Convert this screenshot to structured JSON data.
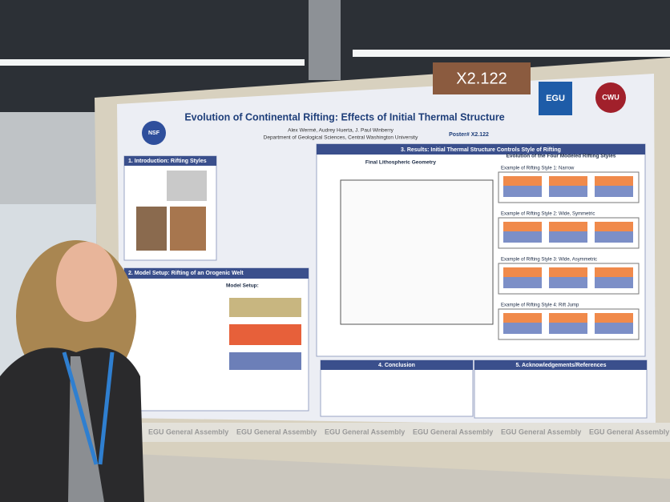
{
  "booth_sign": "X2.122",
  "poster": {
    "title": "Evolution of Continental Rifting: Effects of Initial Thermal Structure",
    "authors": "Alex Wermé, Audrey Huerta, J. Paul Winberry",
    "affiliation": "Department of Geological Sciences, Central Washington University",
    "poster_number": "Poster# X2.122",
    "logos": [
      "NSF",
      "EGU",
      "CWU"
    ],
    "sections": [
      {
        "heading": "1. Introduction: Rifting Styles"
      },
      {
        "heading": "2. Model Setup: Rifting of an Orogenic Welt",
        "subheading": "Model Setup:"
      },
      {
        "heading": "3. Results: Initial Thermal Structure Controls Style of Rifting"
      },
      {
        "heading": "4. Conclusion"
      },
      {
        "heading": "5. Acknowledgements/References"
      }
    ],
    "results": {
      "left_title": "Final Lithospheric Geometry",
      "right_title": "Evolution of the Four Modeled Rifting Styles",
      "examples": [
        "Example of Rifting Style 1: Narrow",
        "Example of Rifting Style 2: Wide, Symmetric",
        "Example of Rifting Style 3: Wide, Asymmetric",
        "Example of Rifting Style 4: Rift Jump"
      ]
    },
    "banner": "EGU General Assembly"
  }
}
